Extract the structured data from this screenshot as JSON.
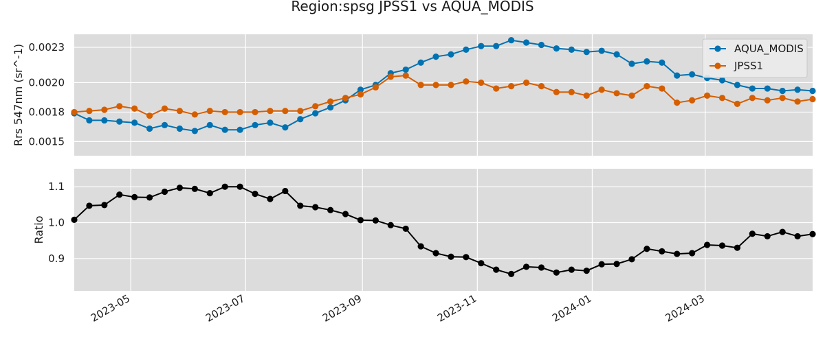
{
  "chart_data": {
    "title": "Region:spsg JPSS1 vs AQUA_MODIS",
    "background": "#dcdcdc",
    "grid": true,
    "x_ticks": [
      "2023-05",
      "2023-07",
      "2023-09",
      "2023-11",
      "2024-01",
      "2024-03"
    ],
    "x_range": [
      "2023-04-01",
      "2024-04-27"
    ],
    "dates": [
      "2023-04-01",
      "2023-04-09",
      "2023-04-17",
      "2023-04-25",
      "2023-05-03",
      "2023-05-11",
      "2023-05-19",
      "2023-05-27",
      "2023-06-04",
      "2023-06-12",
      "2023-06-20",
      "2023-06-28",
      "2023-07-06",
      "2023-07-14",
      "2023-07-22",
      "2023-07-30",
      "2023-08-07",
      "2023-08-15",
      "2023-08-23",
      "2023-08-31",
      "2023-09-08",
      "2023-09-16",
      "2023-09-24",
      "2023-10-02",
      "2023-10-10",
      "2023-10-18",
      "2023-10-26",
      "2023-11-03",
      "2023-11-11",
      "2023-11-19",
      "2023-11-27",
      "2023-12-05",
      "2023-12-13",
      "2023-12-21",
      "2023-12-29",
      "2024-01-06",
      "2024-01-14",
      "2024-01-22",
      "2024-01-30",
      "2024-02-07",
      "2024-02-15",
      "2024-02-23",
      "2024-03-02",
      "2024-03-10",
      "2024-03-18",
      "2024-03-26",
      "2024-04-03",
      "2024-04-11",
      "2024-04-19",
      "2024-04-27"
    ],
    "panels": [
      {
        "type": "line",
        "ylabel": "Rrs 547nm (sr^-1)",
        "ylim": [
          0.00138,
          0.00241
        ],
        "yticks": [
          0.0015,
          0.00175,
          0.002,
          0.0023
        ],
        "ytick_labels": [
          "0.0015",
          "0.0018",
          "0.0020",
          "0.0023"
        ],
        "legend_position": "top-right",
        "series": [
          {
            "name": "AQUA_MODIS",
            "color": "#0072b2",
            "values": [
              0.00174,
              0.00168,
              0.00168,
              0.00167,
              0.00166,
              0.00161,
              0.00164,
              0.00161,
              0.00159,
              0.00164,
              0.0016,
              0.0016,
              0.00164,
              0.00166,
              0.00162,
              0.00169,
              0.00174,
              0.00179,
              0.00185,
              0.00194,
              0.00198,
              0.00208,
              0.00211,
              0.00217,
              0.00222,
              0.00224,
              0.00228,
              0.00231,
              0.00231,
              0.00236,
              0.00234,
              0.00232,
              0.00229,
              0.00228,
              0.00226,
              0.00227,
              0.00224,
              0.00216,
              0.00218,
              0.00217,
              0.00206,
              0.00207,
              0.00204,
              0.00202,
              0.00198,
              0.00195,
              0.00195,
              0.00193,
              0.00194,
              0.00193
            ]
          },
          {
            "name": "JPSS1",
            "color": "#d55e00",
            "values": [
              0.00175,
              0.00176,
              0.00177,
              0.0018,
              0.00178,
              0.00172,
              0.00178,
              0.00176,
              0.00173,
              0.00176,
              0.00175,
              0.00175,
              0.00175,
              0.00176,
              0.00176,
              0.00176,
              0.0018,
              0.00184,
              0.00187,
              0.0019,
              0.00196,
              0.00205,
              0.00206,
              0.00198,
              0.00198,
              0.00198,
              0.00201,
              0.002,
              0.00195,
              0.00197,
              0.002,
              0.00197,
              0.00192,
              0.00192,
              0.00189,
              0.00194,
              0.00191,
              0.00189,
              0.00197,
              0.00195,
              0.00183,
              0.00185,
              0.00189,
              0.00187,
              0.00182,
              0.00187,
              0.00185,
              0.00187,
              0.00184,
              0.00186
            ]
          }
        ]
      },
      {
        "type": "line",
        "ylabel": "Ratio",
        "ylim": [
          0.81,
          1.15
        ],
        "yticks": [
          0.9,
          1.0,
          1.1
        ],
        "ytick_labels": [
          "0.9",
          "1.0",
          "1.1"
        ],
        "series": [
          {
            "color": "#000000",
            "values": [
              1.008,
              1.047,
              1.049,
              1.078,
              1.071,
              1.07,
              1.086,
              1.097,
              1.094,
              1.082,
              1.1,
              1.1,
              1.08,
              1.066,
              1.088,
              1.047,
              1.043,
              1.035,
              1.024,
              1.007,
              1.006,
              0.993,
              0.983,
              0.934,
              0.915,
              0.905,
              0.904,
              0.887,
              0.869,
              0.857,
              0.877,
              0.875,
              0.861,
              0.869,
              0.866,
              0.884,
              0.885,
              0.898,
              0.927,
              0.92,
              0.913,
              0.915,
              0.938,
              0.936,
              0.93,
              0.969,
              0.962,
              0.974,
              0.962,
              0.968
            ]
          }
        ]
      }
    ]
  }
}
